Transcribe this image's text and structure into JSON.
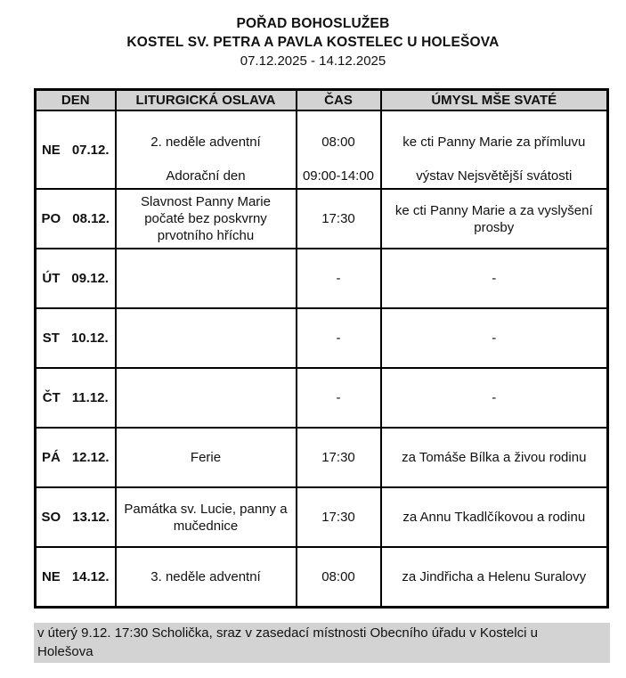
{
  "colors": {
    "cell_gray": "#d3d3d3",
    "border": "#000000",
    "text": "#111111",
    "background": "#ffffff"
  },
  "header": {
    "title": "POŘAD BOHOSLUŽEB",
    "subtitle": "KOSTEL SV. PETRA A PAVLA KOSTELEC U HOLEŠOVA",
    "date_range": "07.12.2025 - 14.12.2025"
  },
  "table": {
    "headers": [
      "DEN",
      "LITURGICKÁ OSLAVA",
      "ČAS",
      "ÚMYSL MŠE SVATÉ"
    ],
    "rows": [
      {
        "day": "NE",
        "date": "07.12.",
        "entries": [
          {
            "celebration": "2. neděle adventní",
            "time": "08:00",
            "intention": "ke cti Panny Marie za přímluvu"
          },
          {
            "celebration": "Adorační den",
            "time": "09:00-14:00",
            "intention": "výstav Nejsvětější svátosti"
          }
        ]
      },
      {
        "day": "PO",
        "date": "08.12.",
        "entries": [
          {
            "celebration": "Slavnost Panny Marie počaté bez poskvrny prvotního hříchu",
            "time": "17:30",
            "intention": "ke cti Panny Marie a za vyslyšení prosby"
          }
        ]
      },
      {
        "day": "ÚT",
        "date": "09.12.",
        "entries": [
          {
            "celebration": "",
            "time": "-",
            "intention": "-"
          }
        ]
      },
      {
        "day": "ST",
        "date": "10.12.",
        "entries": [
          {
            "celebration": "",
            "time": "-",
            "intention": "-"
          }
        ]
      },
      {
        "day": "ČT",
        "date": "11.12.",
        "entries": [
          {
            "celebration": "",
            "time": "-",
            "intention": "-"
          }
        ]
      },
      {
        "day": "PÁ",
        "date": "12.12.",
        "entries": [
          {
            "celebration": "Ferie",
            "time": "17:30",
            "intention": "za Tomáše Bílka a živou rodinu"
          }
        ]
      },
      {
        "day": "SO",
        "date": "13.12.",
        "entries": [
          {
            "celebration": "Památka sv. Lucie, panny a mučednice",
            "time": "17:30",
            "intention": "za Annu Tkadlčíkovou a rodinu"
          }
        ]
      },
      {
        "day": "NE",
        "date": "14.12.",
        "entries": [
          {
            "celebration": "3. neděle adventní",
            "time": "08:00",
            "intention": "za Jindřicha a Helenu Suralovy"
          }
        ]
      }
    ]
  },
  "footer": {
    "lines": [
      "v úterý 9.12. 17:30 Scholička, sraz v zasedací místnosti Obecního úřadu v Kostelci u",
      "Holešova"
    ]
  }
}
